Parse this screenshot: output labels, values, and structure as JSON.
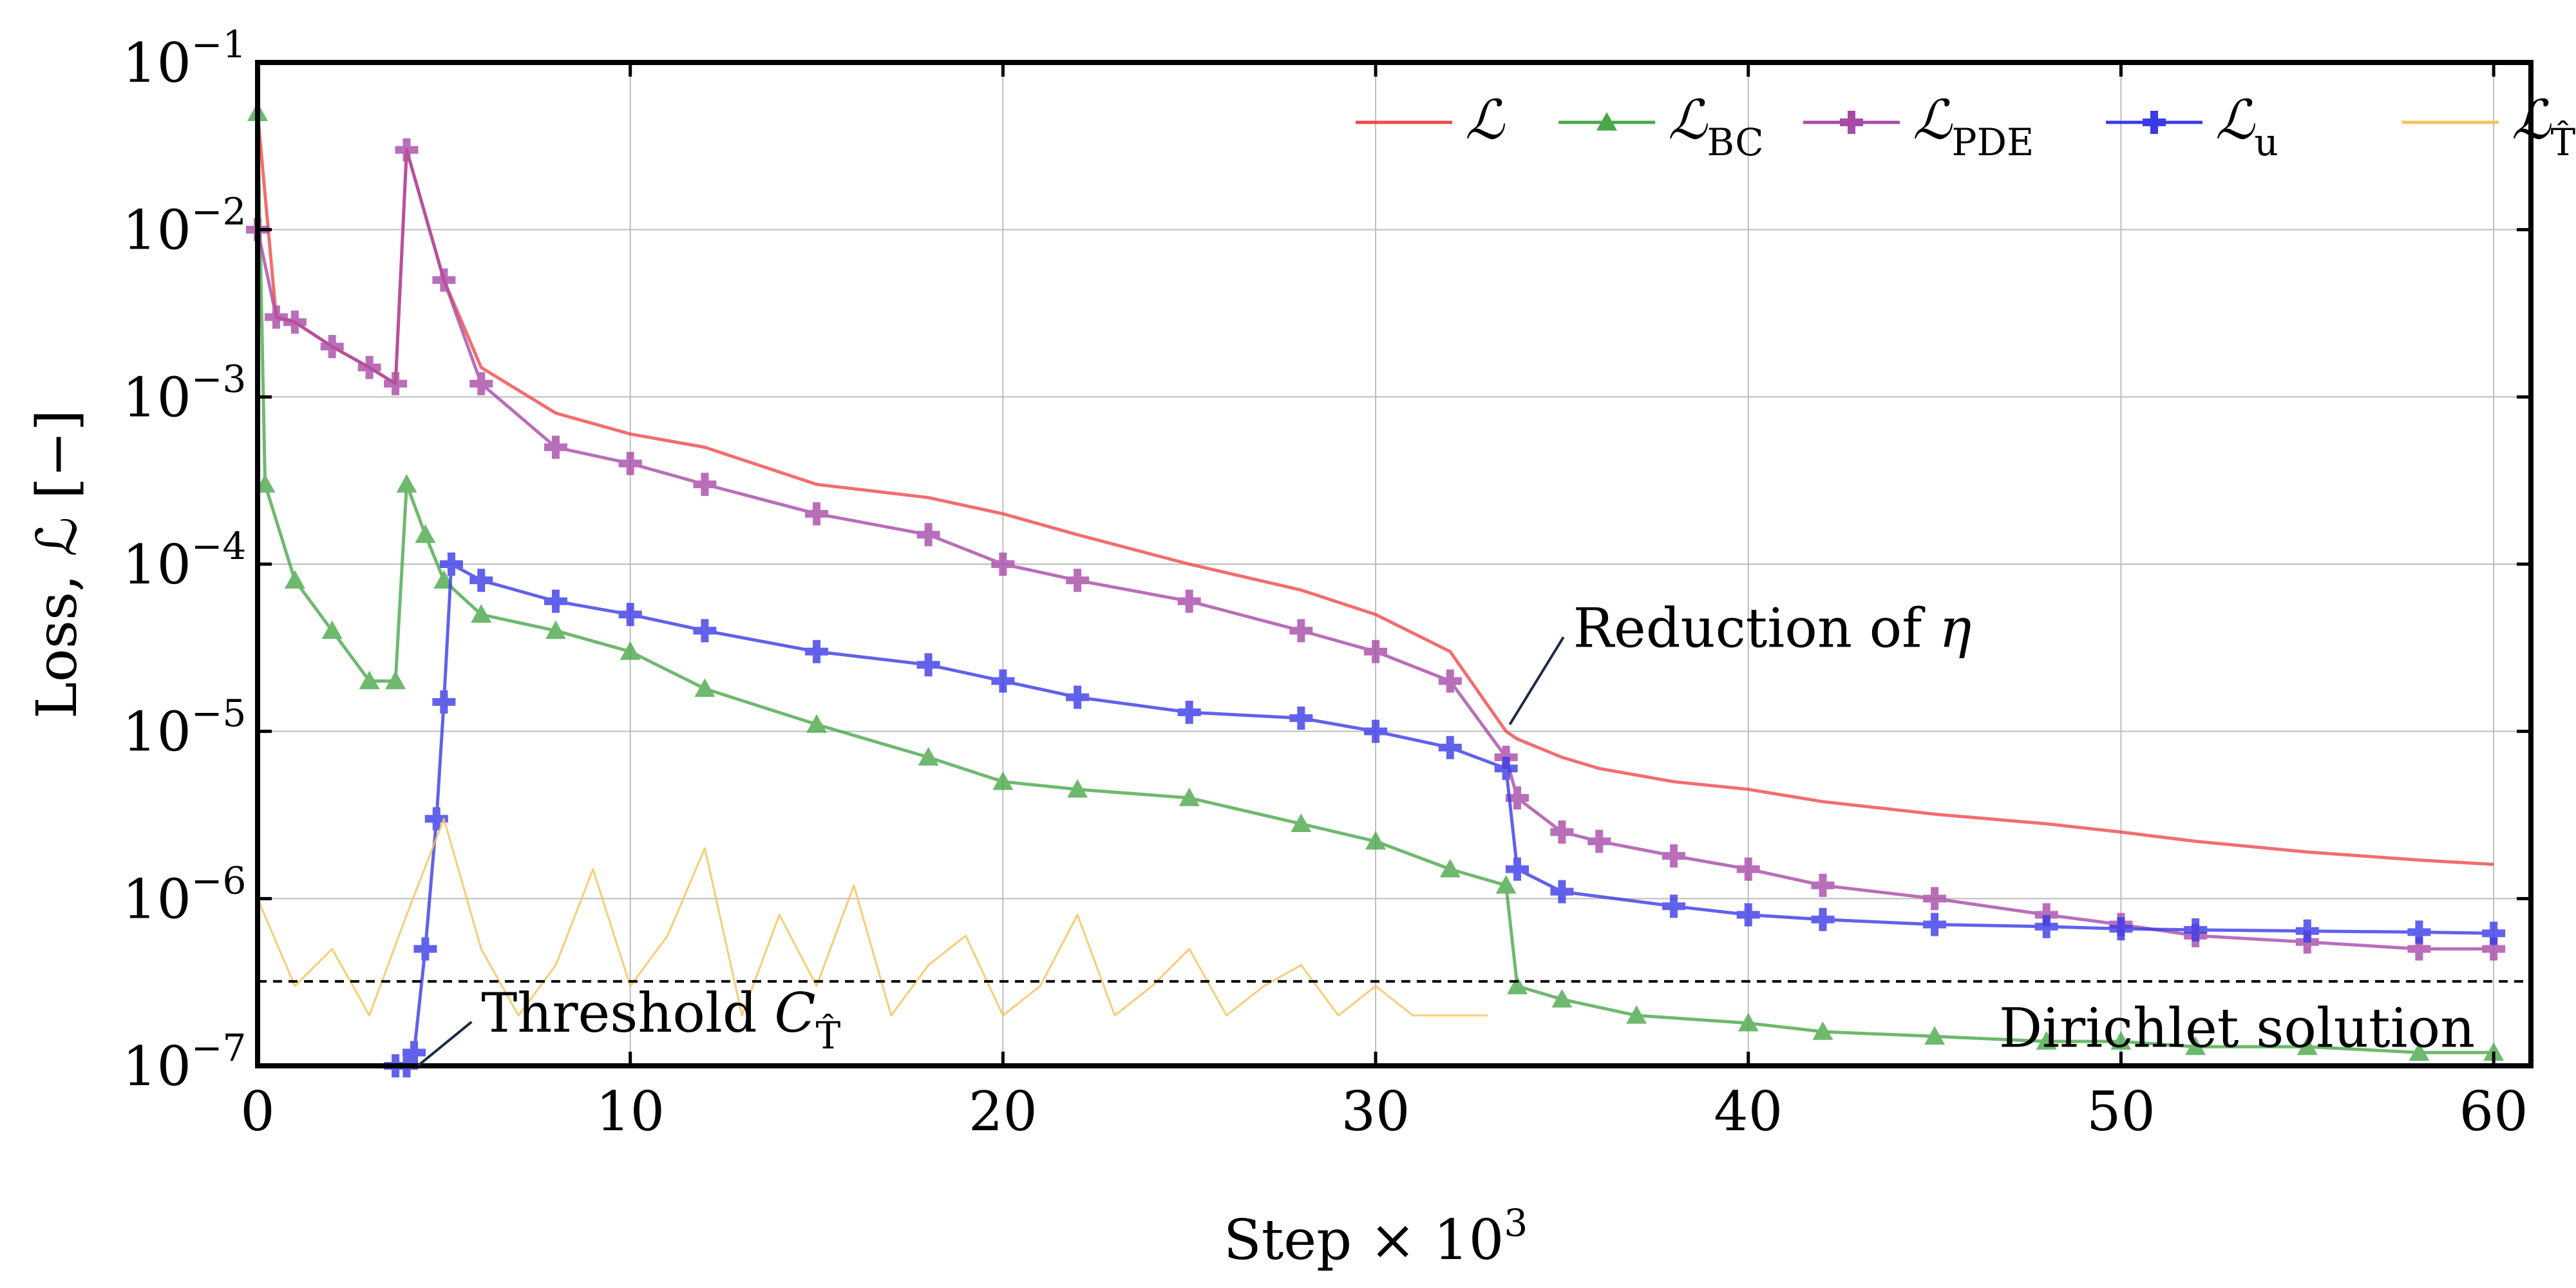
{
  "chart_data": {
    "type": "line",
    "title": "",
    "xlabel": "Step × 10",
    "xlabel_sup": "3",
    "ylabel": "Loss, ℒ [−]",
    "xlim": [
      0,
      61
    ],
    "ylim": [
      1e-07,
      0.1
    ],
    "yscale": "log",
    "grid": true,
    "legend_position": "top",
    "x_ticks": [
      0,
      10,
      20,
      30,
      40,
      50,
      60
    ],
    "x_tick_labels": [
      "0",
      "10",
      "20",
      "30",
      "40",
      "50",
      "60"
    ],
    "y_ticks": [
      0.1,
      0.01,
      0.001,
      0.0001,
      1e-05,
      1e-06,
      1e-07
    ],
    "y_tick_labels": [
      {
        "base": "10",
        "exp": "−1"
      },
      {
        "base": "10",
        "exp": "−2"
      },
      {
        "base": "10",
        "exp": "−3"
      },
      {
        "base": "10",
        "exp": "−4"
      },
      {
        "base": "10",
        "exp": "−5"
      },
      {
        "base": "10",
        "exp": "−6"
      },
      {
        "base": "10",
        "exp": "−7"
      }
    ],
    "series": [
      {
        "name": "ℒ",
        "sub": "",
        "color": "#f0484a",
        "marker": "none",
        "x": [
          0,
          0.5,
          1,
          2,
          3,
          3.7,
          4,
          5,
          6,
          8,
          10,
          12,
          15,
          18,
          20,
          22,
          25,
          28,
          30,
          32,
          33.5,
          33.8,
          35,
          36,
          38,
          40,
          42,
          45,
          48,
          50,
          52,
          55,
          58,
          60
        ],
        "y": [
          0.05,
          0.003,
          0.0028,
          0.002,
          0.0015,
          0.0012,
          0.03,
          0.005,
          0.0015,
          0.0008,
          0.0006,
          0.0005,
          0.0003,
          0.00025,
          0.0002,
          0.00015,
          0.0001,
          7e-05,
          5e-05,
          3e-05,
          1e-05,
          9e-06,
          7e-06,
          6e-06,
          5e-06,
          4.5e-06,
          3.8e-06,
          3.2e-06,
          2.8e-06,
          2.5e-06,
          2.2e-06,
          1.9e-06,
          1.7e-06,
          1.6e-06
        ]
      },
      {
        "name": "ℒ",
        "sub": "BC",
        "color": "#4aa84a",
        "marker": "triangle",
        "x": [
          0,
          0.2,
          1,
          2,
          3,
          3.7,
          4,
          4.5,
          5,
          6,
          8,
          10,
          12,
          15,
          18,
          20,
          22,
          25,
          28,
          30,
          32,
          33.5,
          33.8,
          35,
          37,
          40,
          42,
          45,
          48,
          50,
          52,
          55,
          58,
          60
        ],
        "y": [
          0.05,
          0.0003,
          8e-05,
          4e-05,
          2e-05,
          2e-05,
          0.0003,
          0.00015,
          8e-05,
          5e-05,
          4e-05,
          3e-05,
          1.8e-05,
          1.1e-05,
          7e-06,
          5e-06,
          4.5e-06,
          4e-06,
          2.8e-06,
          2.2e-06,
          1.5e-06,
          1.2e-06,
          3e-07,
          2.5e-07,
          2e-07,
          1.8e-07,
          1.6e-07,
          1.5e-07,
          1.4e-07,
          1.4e-07,
          1.3e-07,
          1.3e-07,
          1.2e-07,
          1.2e-07
        ]
      },
      {
        "name": "ℒ",
        "sub": "PDE",
        "color": "#a84aa8",
        "marker": "plus",
        "x": [
          0,
          0.5,
          1,
          2,
          3,
          3.7,
          4,
          5,
          6,
          8,
          10,
          12,
          15,
          18,
          20,
          22,
          25,
          28,
          30,
          32,
          33.5,
          33.8,
          35,
          36,
          38,
          40,
          42,
          45,
          48,
          50,
          52,
          55,
          58,
          60
        ],
        "y": [
          0.01,
          0.003,
          0.0028,
          0.002,
          0.0015,
          0.0012,
          0.03,
          0.005,
          0.0012,
          0.0005,
          0.0004,
          0.0003,
          0.0002,
          0.00015,
          0.0001,
          8e-05,
          6e-05,
          4e-05,
          3e-05,
          2e-05,
          7e-06,
          4e-06,
          2.5e-06,
          2.2e-06,
          1.8e-06,
          1.5e-06,
          1.2e-06,
          1e-06,
          8e-07,
          7e-07,
          6e-07,
          5.5e-07,
          5e-07,
          5e-07
        ]
      },
      {
        "name": "ℒ",
        "sub": "u",
        "color": "#3a3ae8",
        "marker": "plus",
        "x": [
          3.7,
          4,
          4.2,
          4.5,
          4.8,
          5,
          5.2,
          6,
          8,
          10,
          12,
          15,
          18,
          20,
          22,
          25,
          28,
          30,
          32,
          33.5,
          33.8,
          35,
          38,
          40,
          42,
          45,
          48,
          50,
          52,
          55,
          58,
          60
        ],
        "y": [
          1e-07,
          1e-07,
          1.2e-07,
          5e-07,
          3e-06,
          1.5e-05,
          0.0001,
          8e-05,
          6e-05,
          5e-05,
          4e-05,
          3e-05,
          2.5e-05,
          2e-05,
          1.6e-05,
          1.3e-05,
          1.2e-05,
          1e-05,
          8e-06,
          6e-06,
          1.5e-06,
          1.1e-06,
          9e-07,
          8e-07,
          7.5e-07,
          7e-07,
          6.8e-07,
          6.6e-07,
          6.5e-07,
          6.4e-07,
          6.3e-07,
          6.2e-07
        ]
      },
      {
        "name": "ℒ",
        "sub": "T̂",
        "color": "#f7c45a",
        "marker": "none",
        "x": [
          0,
          1,
          2,
          3,
          4,
          5,
          6,
          7,
          8,
          9,
          10,
          11,
          12,
          13,
          14,
          15,
          16,
          17,
          18,
          19,
          20,
          21,
          22,
          23,
          24,
          25,
          26,
          27,
          28,
          29,
          30,
          31,
          32,
          33
        ],
        "y": [
          1e-06,
          3e-07,
          5e-07,
          2e-07,
          8e-07,
          3e-06,
          5e-07,
          2e-07,
          4e-07,
          1.5e-06,
          3e-07,
          6e-07,
          2e-06,
          2e-07,
          8e-07,
          3e-07,
          1.2e-06,
          2e-07,
          4e-07,
          6e-07,
          2e-07,
          3e-07,
          8e-07,
          2e-07,
          3e-07,
          5e-07,
          2e-07,
          3e-07,
          4e-07,
          2e-07,
          3e-07,
          2e-07,
          2e-07,
          2e-07
        ]
      }
    ],
    "threshold": {
      "value": 3.2e-07,
      "style": "dashed"
    },
    "annotations": [
      {
        "text": "Reduction of ",
        "math": "η",
        "x": 33.6,
        "y": 1.1e-05,
        "label_x": 35.3,
        "label_y": 4e-05
      },
      {
        "text": "Threshold ",
        "math": "C",
        "math_sub": "T̂",
        "x": 4.3,
        "y": 1e-07,
        "label_x": 6,
        "label_y": 2e-07
      },
      {
        "text": "Dirichlet solution",
        "x": 59.5,
        "y": 1.3e-07
      }
    ]
  }
}
